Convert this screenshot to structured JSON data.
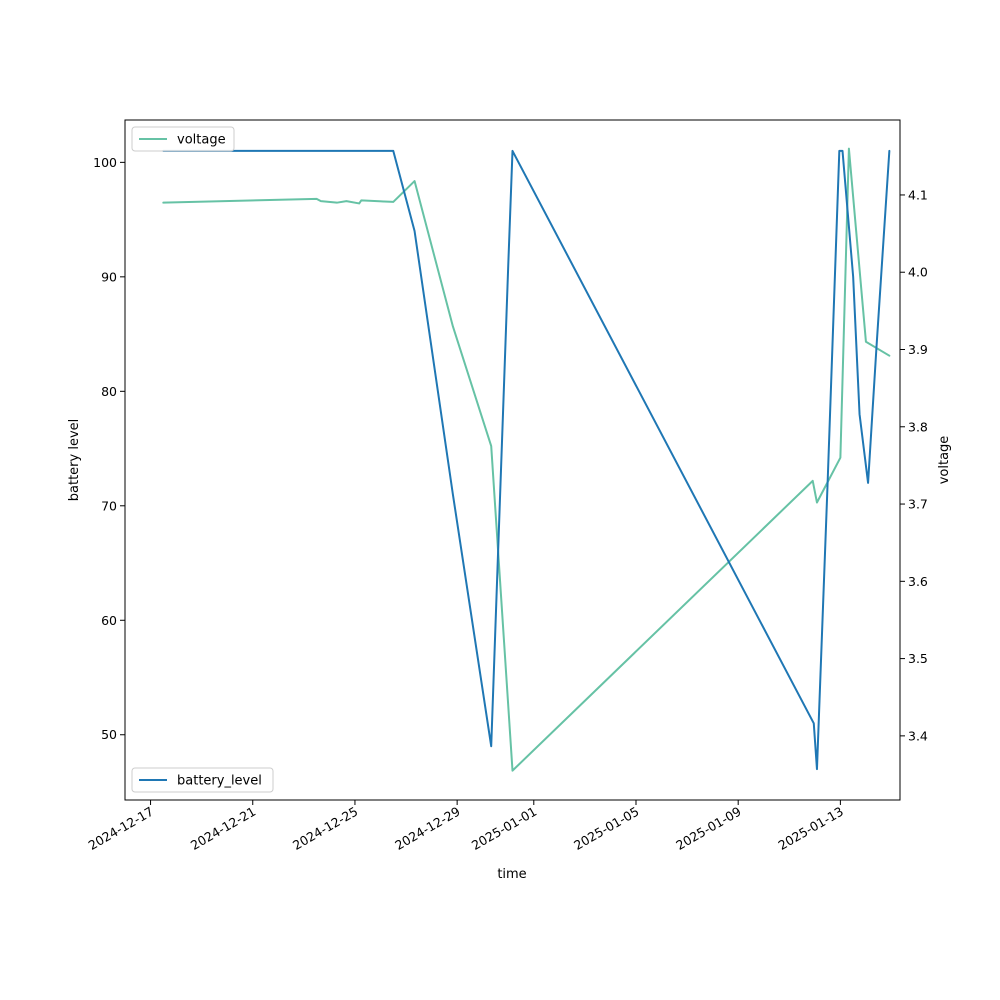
{
  "chart_data": {
    "type": "line",
    "xlabel": "time",
    "ylabel_left": "battery level",
    "ylabel_right": "voltage",
    "x_ticks": [
      "2024-12-17",
      "2024-12-21",
      "2024-12-25",
      "2024-12-29",
      "2025-01-01",
      "2025-01-05",
      "2025-01-09",
      "2025-01-13"
    ],
    "x_range": [
      "2024-12-16T00:00",
      "2025-01-15T08:00"
    ],
    "ylim_left": [
      44.3,
      103.7
    ],
    "yticks_left": [
      50,
      60,
      70,
      80,
      90,
      100
    ],
    "ylim_right": [
      3.317,
      4.197
    ],
    "yticks_right": [
      3.4,
      3.5,
      3.6,
      3.7,
      3.8,
      3.9,
      4.0,
      4.1
    ],
    "grid": false,
    "series": [
      {
        "name": "battery_level",
        "axis": "left",
        "color": "#1f77b4",
        "legend_position": "lower-left",
        "points": [
          [
            "2024-12-17T12:00",
            101
          ],
          [
            "2024-12-26T12:00",
            101
          ],
          [
            "2024-12-27T08:00",
            94
          ],
          [
            "2024-12-28T20:00",
            71
          ],
          [
            "2024-12-30T08:00",
            49
          ],
          [
            "2024-12-31T00:00",
            91
          ],
          [
            "2024-12-31T04:00",
            101
          ],
          [
            "2025-01-11T23:00",
            51
          ],
          [
            "2025-01-12T02:00",
            47
          ],
          [
            "2025-01-12T12:00",
            72
          ],
          [
            "2025-01-12T23:00",
            101
          ],
          [
            "2025-01-13T02:00",
            101
          ],
          [
            "2025-01-13T12:00",
            90
          ],
          [
            "2025-01-13T18:00",
            78
          ],
          [
            "2025-01-14T02:00",
            72
          ],
          [
            "2025-01-14T10:00",
            84
          ],
          [
            "2025-01-14T22:00",
            101
          ]
        ]
      },
      {
        "name": "voltage",
        "axis": "right",
        "color": "#66c2a5",
        "legend_position": "upper-left",
        "points": [
          [
            "2024-12-17T12:00",
            4.09
          ],
          [
            "2024-12-23T12:00",
            4.095
          ],
          [
            "2024-12-23T16:00",
            4.092
          ],
          [
            "2024-12-24T07:00",
            4.09
          ],
          [
            "2024-12-24T16:00",
            4.092
          ],
          [
            "2024-12-25T04:00",
            4.089
          ],
          [
            "2024-12-25T06:00",
            4.093
          ],
          [
            "2024-12-26T12:00",
            4.091
          ],
          [
            "2024-12-27T08:00",
            4.118
          ],
          [
            "2024-12-28T20:00",
            3.93
          ],
          [
            "2024-12-30T08:00",
            3.775
          ],
          [
            "2024-12-31T04:00",
            3.355
          ],
          [
            "2025-01-11T22:00",
            3.73
          ],
          [
            "2025-01-12T02:00",
            3.702
          ],
          [
            "2025-01-13T00:00",
            3.76
          ],
          [
            "2025-01-13T08:00",
            4.16
          ],
          [
            "2025-01-14T00:00",
            3.91
          ],
          [
            "2025-01-14T22:00",
            3.892
          ]
        ]
      }
    ]
  }
}
